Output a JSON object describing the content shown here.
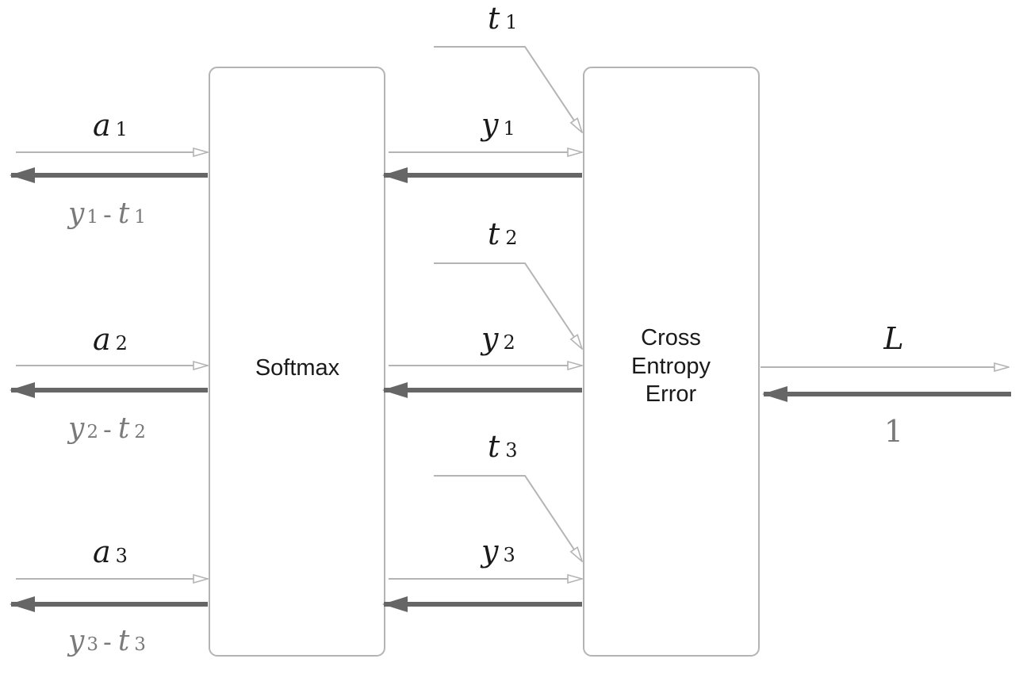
{
  "softmax": {
    "label": "Softmax"
  },
  "cross_entropy": {
    "lines": [
      "Cross",
      "Entropy",
      "Error"
    ]
  },
  "inputs": [
    {
      "var": "a",
      "sub": "1"
    },
    {
      "var": "a",
      "sub": "2"
    },
    {
      "var": "a",
      "sub": "3"
    }
  ],
  "softmax_outputs": [
    {
      "var": "y",
      "sub": "1"
    },
    {
      "var": "y",
      "sub": "2"
    },
    {
      "var": "y",
      "sub": "3"
    }
  ],
  "targets": [
    {
      "var": "t",
      "sub": "1"
    },
    {
      "var": "t",
      "sub": "2"
    },
    {
      "var": "t",
      "sub": "3"
    }
  ],
  "gradients": [
    {
      "y": "y",
      "y_sub": "1",
      "op": "-",
      "t": "t",
      "t_sub": "1"
    },
    {
      "y": "y",
      "y_sub": "2",
      "op": "-",
      "t": "t",
      "t_sub": "2"
    },
    {
      "y": "y",
      "y_sub": "3",
      "op": "-",
      "t": "t",
      "t_sub": "3"
    }
  ],
  "loss": {
    "label": "L",
    "upstream_gradient": "1"
  },
  "colors": {
    "forward": "#b4b4b4",
    "backward": "#666666",
    "box_border": "#b4b4b4",
    "gradient_text": "#7a7a7a"
  }
}
